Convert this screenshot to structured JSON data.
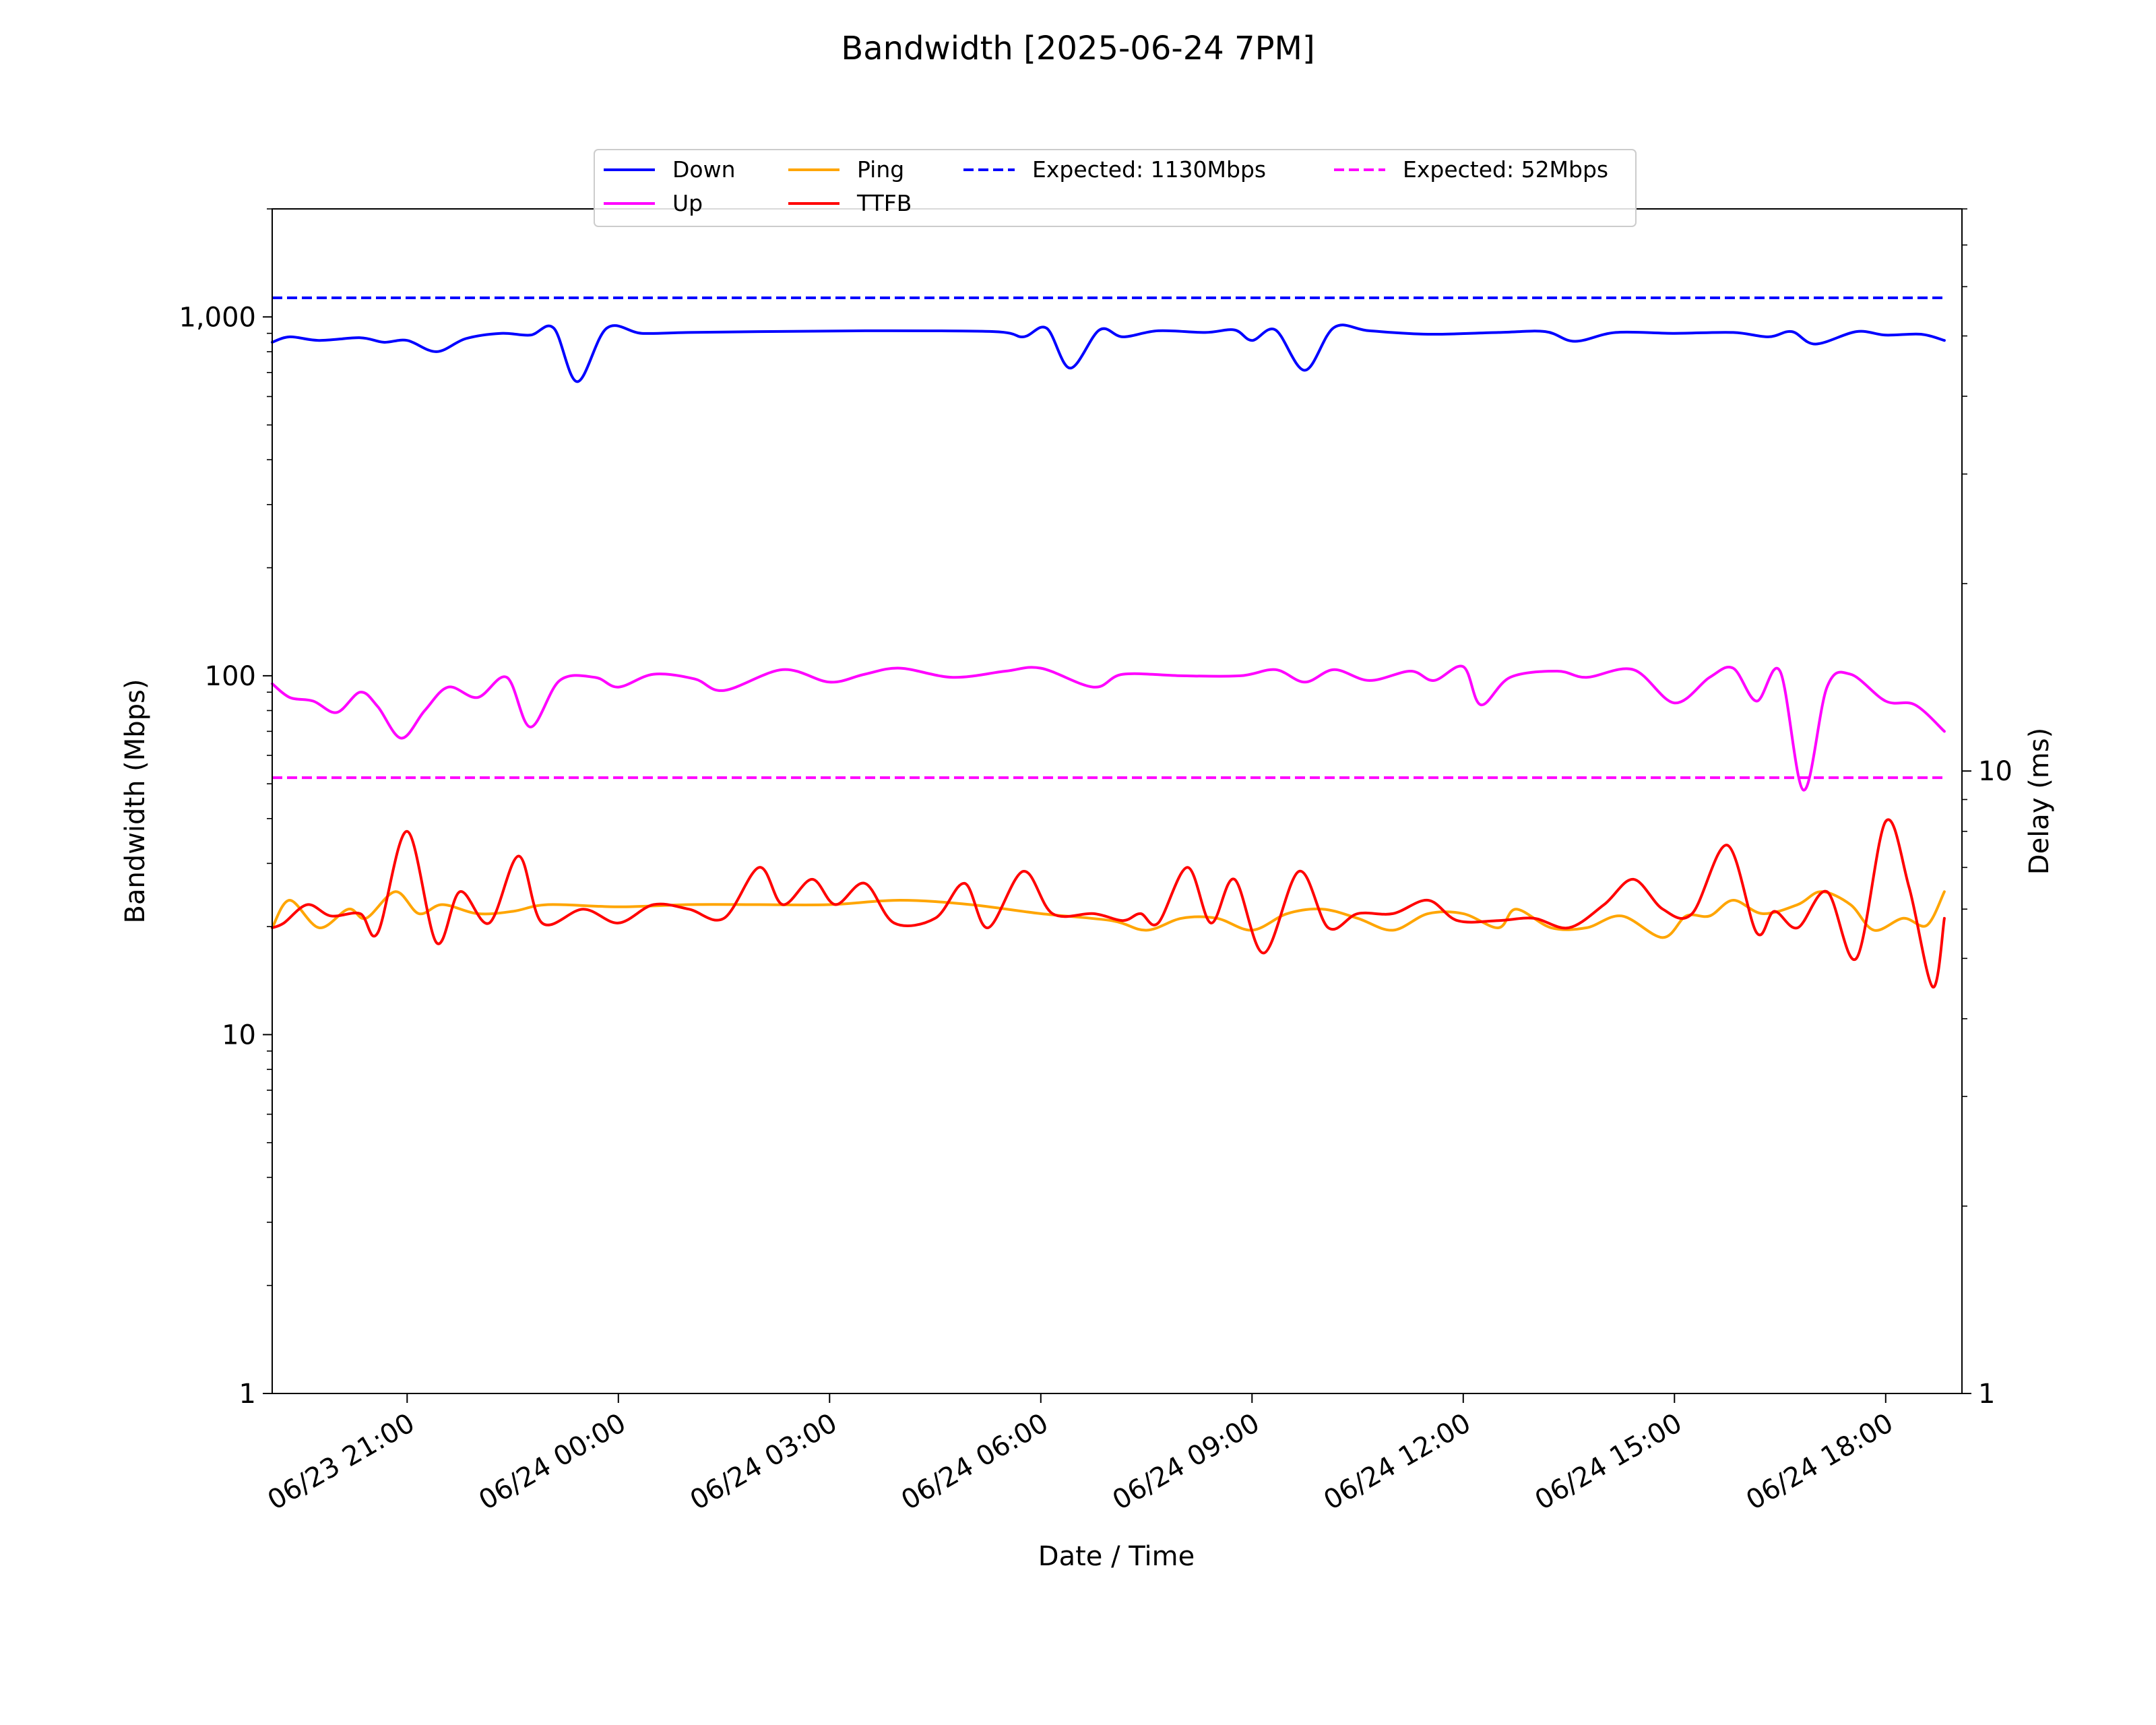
{
  "chart_data": {
    "type": "line",
    "title": "Bandwidth [2025-06-24 7PM]",
    "xlabel": "Date / Time",
    "ylabel": "Bandwidth (Mbps)",
    "y2label": "Delay (ms)",
    "y_scale": "log",
    "ylim": [
      1,
      2000
    ],
    "y_ticks": [
      {
        "value": 1,
        "label": "1"
      },
      {
        "value": 10,
        "label": "10"
      },
      {
        "value": 100,
        "label": "100"
      },
      {
        "value": 1000,
        "label": "1,000"
      }
    ],
    "y2_scale": "log",
    "y2lim": [
      1,
      80
    ],
    "y2_ticks": [
      {
        "value": 1,
        "label": "1"
      },
      {
        "value": 10,
        "label": "10"
      }
    ],
    "xlim": [
      "2025-06-23 19:05",
      "2025-06-24 19:05"
    ],
    "x_ticks": [
      {
        "value": "2025-06-23 21:00",
        "label": "06/23 21:00"
      },
      {
        "value": "2025-06-24 00:00",
        "label": "06/24 00:00"
      },
      {
        "value": "2025-06-24 03:00",
        "label": "06/24 03:00"
      },
      {
        "value": "2025-06-24 06:00",
        "label": "06/24 06:00"
      },
      {
        "value": "2025-06-24 09:00",
        "label": "06/24 09:00"
      },
      {
        "value": "2025-06-24 12:00",
        "label": "06/24 12:00"
      },
      {
        "value": "2025-06-24 15:00",
        "label": "06/24 15:00"
      },
      {
        "value": "2025-06-24 18:00",
        "label": "06/24 18:00"
      }
    ],
    "grid": false,
    "legend_position": "top-center",
    "series": [
      {
        "name": "Down",
        "axis": "left",
        "color": "#0000ff",
        "style": "solid",
        "points": [
          [
            "2025-06-23 19:05",
            850
          ],
          [
            "2025-06-23 19:20",
            880
          ],
          [
            "2025-06-23 19:45",
            860
          ],
          [
            "2025-06-23 20:20",
            875
          ],
          [
            "2025-06-23 20:40",
            850
          ],
          [
            "2025-06-23 21:00",
            860
          ],
          [
            "2025-06-23 21:25",
            800
          ],
          [
            "2025-06-23 21:50",
            870
          ],
          [
            "2025-06-23 22:20",
            900
          ],
          [
            "2025-06-23 22:45",
            890
          ],
          [
            "2025-06-23 23:05",
            930
          ],
          [
            "2025-06-23 23:25",
            660
          ],
          [
            "2025-06-23 23:50",
            930
          ],
          [
            "2025-06-24 00:20",
            900
          ],
          [
            "2025-06-24 01:00",
            905
          ],
          [
            "2025-06-24 02:00",
            910
          ],
          [
            "2025-06-24 03:30",
            915
          ],
          [
            "2025-06-24 05:20",
            910
          ],
          [
            "2025-06-24 05:45",
            880
          ],
          [
            "2025-06-24 06:05",
            930
          ],
          [
            "2025-06-24 06:25",
            720
          ],
          [
            "2025-06-24 06:50",
            920
          ],
          [
            "2025-06-24 07:10",
            880
          ],
          [
            "2025-06-24 07:40",
            915
          ],
          [
            "2025-06-24 08:20",
            905
          ],
          [
            "2025-06-24 08:45",
            920
          ],
          [
            "2025-06-24 09:00",
            860
          ],
          [
            "2025-06-24 09:20",
            920
          ],
          [
            "2025-06-24 09:45",
            710
          ],
          [
            "2025-06-24 10:10",
            935
          ],
          [
            "2025-06-24 10:40",
            915
          ],
          [
            "2025-06-24 11:30",
            895
          ],
          [
            "2025-06-24 12:30",
            905
          ],
          [
            "2025-06-24 13:10",
            910
          ],
          [
            "2025-06-24 13:35",
            855
          ],
          [
            "2025-06-24 14:10",
            905
          ],
          [
            "2025-06-24 15:00",
            900
          ],
          [
            "2025-06-24 15:50",
            905
          ],
          [
            "2025-06-24 16:20",
            880
          ],
          [
            "2025-06-24 16:40",
            910
          ],
          [
            "2025-06-24 17:00",
            840
          ],
          [
            "2025-06-24 17:35",
            910
          ],
          [
            "2025-06-24 18:00",
            890
          ],
          [
            "2025-06-24 18:30",
            895
          ],
          [
            "2025-06-24 18:50",
            860
          ]
        ]
      },
      {
        "name": "Up",
        "axis": "left",
        "color": "#ff00ff",
        "style": "solid",
        "points": [
          [
            "2025-06-23 19:05",
            95
          ],
          [
            "2025-06-23 19:20",
            87
          ],
          [
            "2025-06-23 19:40",
            85
          ],
          [
            "2025-06-23 20:00",
            79
          ],
          [
            "2025-06-23 20:20",
            90
          ],
          [
            "2025-06-23 20:35",
            82
          ],
          [
            "2025-06-23 20:55",
            67
          ],
          [
            "2025-06-23 21:15",
            80
          ],
          [
            "2025-06-23 21:35",
            93
          ],
          [
            "2025-06-23 22:00",
            87
          ],
          [
            "2025-06-23 22:25",
            99
          ],
          [
            "2025-06-23 22:45",
            72
          ],
          [
            "2025-06-23 23:10",
            97
          ],
          [
            "2025-06-23 23:40",
            99
          ],
          [
            "2025-06-24 00:00",
            93
          ],
          [
            "2025-06-24 00:30",
            101
          ],
          [
            "2025-06-24 01:05",
            98
          ],
          [
            "2025-06-24 01:30",
            91
          ],
          [
            "2025-06-24 02:20",
            104
          ],
          [
            "2025-06-24 03:00",
            96
          ],
          [
            "2025-06-24 03:30",
            101
          ],
          [
            "2025-06-24 04:00",
            105
          ],
          [
            "2025-06-24 04:45",
            99
          ],
          [
            "2025-06-24 05:30",
            103
          ],
          [
            "2025-06-24 06:00",
            105
          ],
          [
            "2025-06-24 06:45",
            93
          ],
          [
            "2025-06-24 07:10",
            101
          ],
          [
            "2025-06-24 08:00",
            100
          ],
          [
            "2025-06-24 08:50",
            100
          ],
          [
            "2025-06-24 09:20",
            104
          ],
          [
            "2025-06-24 09:45",
            96
          ],
          [
            "2025-06-24 10:10",
            104
          ],
          [
            "2025-06-24 10:40",
            97
          ],
          [
            "2025-06-24 11:15",
            103
          ],
          [
            "2025-06-24 11:35",
            97
          ],
          [
            "2025-06-24 12:00",
            106
          ],
          [
            "2025-06-24 12:15",
            83
          ],
          [
            "2025-06-24 12:40",
            99
          ],
          [
            "2025-06-24 13:20",
            103
          ],
          [
            "2025-06-24 13:45",
            99
          ],
          [
            "2025-06-24 14:25",
            104
          ],
          [
            "2025-06-24 15:00",
            84
          ],
          [
            "2025-06-24 15:30",
            99
          ],
          [
            "2025-06-24 15:50",
            105
          ],
          [
            "2025-06-24 16:10",
            85
          ],
          [
            "2025-06-24 16:30",
            103
          ],
          [
            "2025-06-24 16:50",
            48
          ],
          [
            "2025-06-24 17:10",
            93
          ],
          [
            "2025-06-24 17:30",
            101
          ],
          [
            "2025-06-24 18:00",
            85
          ],
          [
            "2025-06-24 18:25",
            83
          ],
          [
            "2025-06-24 18:50",
            70
          ]
        ]
      },
      {
        "name": "Ping",
        "axis": "right",
        "color": "#ffa500",
        "style": "solid",
        "points": [
          [
            "2025-06-23 19:05",
            5.6
          ],
          [
            "2025-06-23 19:20",
            6.2
          ],
          [
            "2025-06-23 19:45",
            5.6
          ],
          [
            "2025-06-23 20:10",
            6.0
          ],
          [
            "2025-06-23 20:25",
            5.8
          ],
          [
            "2025-06-23 20:50",
            6.4
          ],
          [
            "2025-06-23 21:10",
            5.9
          ],
          [
            "2025-06-23 21:30",
            6.1
          ],
          [
            "2025-06-23 22:00",
            5.9
          ],
          [
            "2025-06-23 22:30",
            5.95
          ],
          [
            "2025-06-23 23:00",
            6.1
          ],
          [
            "2025-06-24 00:00",
            6.05
          ],
          [
            "2025-06-24 01:00",
            6.1
          ],
          [
            "2025-06-24 02:00",
            6.1
          ],
          [
            "2025-06-24 03:00",
            6.1
          ],
          [
            "2025-06-24 04:00",
            6.2
          ],
          [
            "2025-06-24 05:00",
            6.1
          ],
          [
            "2025-06-24 06:00",
            5.9
          ],
          [
            "2025-06-24 07:00",
            5.75
          ],
          [
            "2025-06-24 07:30",
            5.55
          ],
          [
            "2025-06-24 08:00",
            5.8
          ],
          [
            "2025-06-24 08:30",
            5.8
          ],
          [
            "2025-06-24 09:00",
            5.55
          ],
          [
            "2025-06-24 09:30",
            5.9
          ],
          [
            "2025-06-24 10:00",
            6.0
          ],
          [
            "2025-06-24 10:30",
            5.8
          ],
          [
            "2025-06-24 11:00",
            5.55
          ],
          [
            "2025-06-24 11:30",
            5.9
          ],
          [
            "2025-06-24 12:00",
            5.9
          ],
          [
            "2025-06-24 12:30",
            5.6
          ],
          [
            "2025-06-24 12:45",
            6.0
          ],
          [
            "2025-06-24 13:15",
            5.6
          ],
          [
            "2025-06-24 13:45",
            5.6
          ],
          [
            "2025-06-24 14:15",
            5.85
          ],
          [
            "2025-06-24 14:50",
            5.4
          ],
          [
            "2025-06-24 15:10",
            5.85
          ],
          [
            "2025-06-24 15:30",
            5.85
          ],
          [
            "2025-06-24 15:50",
            6.2
          ],
          [
            "2025-06-24 16:15",
            5.9
          ],
          [
            "2025-06-24 16:45",
            6.1
          ],
          [
            "2025-06-24 17:05",
            6.4
          ],
          [
            "2025-06-24 17:30",
            6.1
          ],
          [
            "2025-06-24 17:50",
            5.55
          ],
          [
            "2025-06-24 18:15",
            5.8
          ],
          [
            "2025-06-24 18:35",
            5.65
          ],
          [
            "2025-06-24 18:50",
            6.4
          ]
        ]
      },
      {
        "name": "TTFB",
        "axis": "right",
        "color": "#ff0000",
        "style": "solid",
        "points": [
          [
            "2025-06-23 19:05",
            5.6
          ],
          [
            "2025-06-23 19:15",
            5.7
          ],
          [
            "2025-06-23 19:35",
            6.1
          ],
          [
            "2025-06-23 19:55",
            5.85
          ],
          [
            "2025-06-23 20:20",
            5.9
          ],
          [
            "2025-06-23 20:35",
            5.5
          ],
          [
            "2025-06-23 21:00",
            8.0
          ],
          [
            "2025-06-23 21:25",
            5.3
          ],
          [
            "2025-06-23 21:45",
            6.4
          ],
          [
            "2025-06-23 22:10",
            5.7
          ],
          [
            "2025-06-23 22:35",
            7.3
          ],
          [
            "2025-06-23 22:55",
            5.7
          ],
          [
            "2025-06-23 23:30",
            6.0
          ],
          [
            "2025-06-24 00:00",
            5.7
          ],
          [
            "2025-06-24 00:30",
            6.1
          ],
          [
            "2025-06-24 01:00",
            6.0
          ],
          [
            "2025-06-24 01:30",
            5.8
          ],
          [
            "2025-06-24 02:00",
            7.0
          ],
          [
            "2025-06-24 02:20",
            6.1
          ],
          [
            "2025-06-24 02:45",
            6.7
          ],
          [
            "2025-06-24 03:05",
            6.1
          ],
          [
            "2025-06-24 03:30",
            6.6
          ],
          [
            "2025-06-24 03:55",
            5.7
          ],
          [
            "2025-06-24 04:30",
            5.8
          ],
          [
            "2025-06-24 04:55",
            6.6
          ],
          [
            "2025-06-24 05:15",
            5.6
          ],
          [
            "2025-06-24 05:45",
            6.9
          ],
          [
            "2025-06-24 06:10",
            5.9
          ],
          [
            "2025-06-24 06:45",
            5.9
          ],
          [
            "2025-06-24 07:10",
            5.75
          ],
          [
            "2025-06-24 07:25",
            5.9
          ],
          [
            "2025-06-24 07:40",
            5.7
          ],
          [
            "2025-06-24 08:05",
            7.0
          ],
          [
            "2025-06-24 08:25",
            5.7
          ],
          [
            "2025-06-24 08:45",
            6.7
          ],
          [
            "2025-06-24 09:10",
            5.1
          ],
          [
            "2025-06-24 09:40",
            6.9
          ],
          [
            "2025-06-24 10:05",
            5.6
          ],
          [
            "2025-06-24 10:30",
            5.9
          ],
          [
            "2025-06-24 11:00",
            5.9
          ],
          [
            "2025-06-24 11:30",
            6.2
          ],
          [
            "2025-06-24 11:55",
            5.75
          ],
          [
            "2025-06-24 12:30",
            5.75
          ],
          [
            "2025-06-24 13:00",
            5.8
          ],
          [
            "2025-06-24 13:30",
            5.6
          ],
          [
            "2025-06-24 14:00",
            6.1
          ],
          [
            "2025-06-24 14:25",
            6.7
          ],
          [
            "2025-06-24 14:50",
            6.0
          ],
          [
            "2025-06-24 15:15",
            5.9
          ],
          [
            "2025-06-24 15:45",
            7.6
          ],
          [
            "2025-06-24 16:10",
            5.5
          ],
          [
            "2025-06-24 16:25",
            5.95
          ],
          [
            "2025-06-24 16:45",
            5.6
          ],
          [
            "2025-06-24 17:10",
            6.4
          ],
          [
            "2025-06-24 17:35",
            5.0
          ],
          [
            "2025-06-24 18:00",
            8.3
          ],
          [
            "2025-06-24 18:20",
            6.5
          ],
          [
            "2025-06-24 18:40",
            4.5
          ],
          [
            "2025-06-24 18:50",
            5.8
          ]
        ]
      },
      {
        "name": "Expected: 1130Mbps",
        "axis": "left",
        "color": "#0000ff",
        "style": "dashed",
        "points": [
          [
            "2025-06-23 19:05",
            1130
          ],
          [
            "2025-06-24 18:50",
            1130
          ]
        ]
      },
      {
        "name": "Expected: 52Mbps",
        "axis": "left",
        "color": "#ff00ff",
        "style": "dashed",
        "points": [
          [
            "2025-06-23 19:05",
            52
          ],
          [
            "2025-06-24 18:50",
            52
          ]
        ]
      }
    ]
  }
}
